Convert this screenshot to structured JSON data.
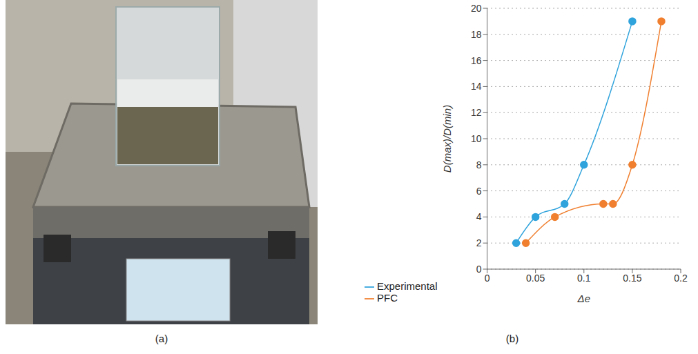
{
  "panels": [
    "(a)",
    "(b)"
  ],
  "chart_data": {
    "type": "line",
    "x_label": "Δe",
    "y_label": "D(max)/D(min)",
    "xlim": [
      0,
      0.2
    ],
    "xticks": [
      0,
      0.05,
      0.1,
      0.15,
      0.2
    ],
    "ylim": [
      0,
      20
    ],
    "yticks": [
      0,
      2,
      4,
      6,
      8,
      10,
      12,
      14,
      16,
      18,
      20
    ],
    "grid": true,
    "legend": "bottom",
    "series": [
      {
        "name": "Experimental",
        "color": "#2fa3dc",
        "marker": "circle",
        "x": [
          0.03,
          0.05,
          0.08,
          0.1,
          0.15
        ],
        "values": [
          2,
          4,
          5,
          8,
          19
        ]
      },
      {
        "name": "PFC",
        "color": "#f07f2f",
        "marker": "circle",
        "x": [
          0.04,
          0.07,
          0.12,
          0.13,
          0.15,
          0.18
        ],
        "values": [
          2,
          4,
          5,
          5,
          8,
          19
        ]
      }
    ]
  }
}
